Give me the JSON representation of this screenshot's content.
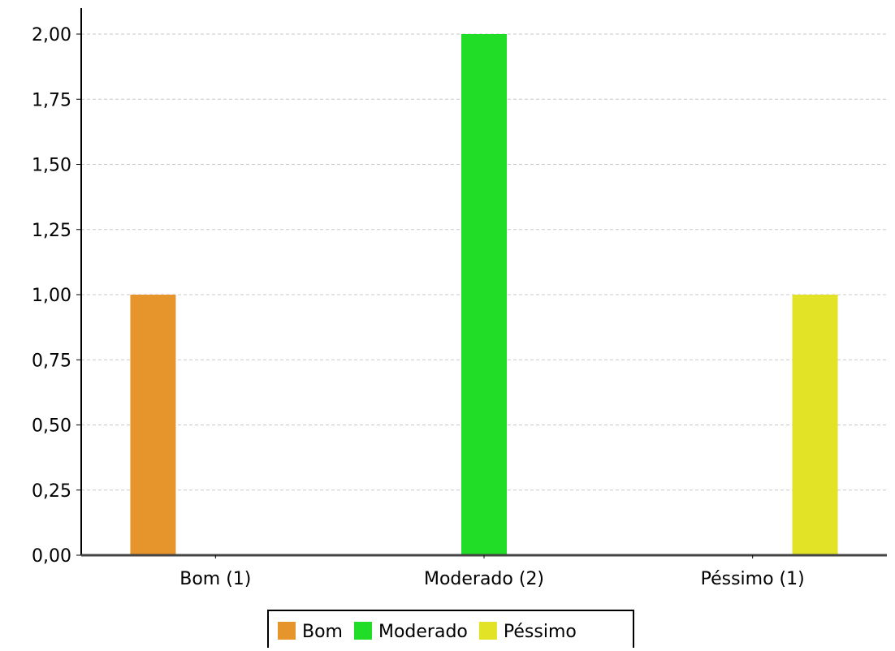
{
  "chart_data": {
    "type": "bar",
    "categories": [
      "Bom (1)",
      "Moderado (2)",
      "Péssimo (1)"
    ],
    "series": [
      {
        "name": "Bom",
        "color": "#e6952d",
        "values": [
          1,
          0,
          0
        ]
      },
      {
        "name": "Moderado",
        "color": "#22dd28",
        "values": [
          0,
          2,
          0
        ]
      },
      {
        "name": "Péssimo",
        "color": "#e2e327",
        "values": [
          0,
          0,
          1
        ]
      }
    ],
    "yticks": [
      "0,00",
      "0,25",
      "0,50",
      "0,75",
      "1,00",
      "1,25",
      "1,50",
      "1,75",
      "2,00"
    ],
    "ylim": [
      0,
      2
    ],
    "grid": true,
    "legend_position": "bottom"
  }
}
